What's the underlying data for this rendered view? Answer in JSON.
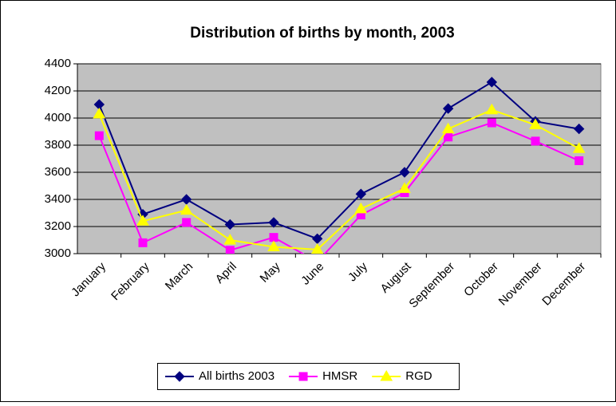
{
  "chart_data": {
    "type": "line",
    "title": "Distribution of births by month, 2003",
    "categories": [
      "January",
      "February",
      "March",
      "April",
      "May",
      "June",
      "July",
      "August",
      "September",
      "October",
      "November",
      "December"
    ],
    "series": [
      {
        "name": "All births 2003",
        "color": "#000080",
        "marker": "diamond",
        "values": [
          4100,
          3290,
          3400,
          3215,
          3230,
          3110,
          3440,
          3600,
          4070,
          4265,
          3975,
          3920
        ]
      },
      {
        "name": "HMSR",
        "color": "#ff00ff",
        "marker": "square",
        "values": [
          3870,
          3080,
          3230,
          3025,
          3120,
          2940,
          3285,
          3450,
          3860,
          3965,
          3830,
          3685
        ]
      },
      {
        "name": "RGD",
        "color": "#ffff00",
        "marker": "triangle",
        "values": [
          4030,
          3240,
          3320,
          3100,
          3050,
          3030,
          3330,
          3480,
          3920,
          4060,
          3950,
          3775
        ]
      }
    ],
    "ylim": [
      3000,
      4400
    ],
    "yticks": [
      3000,
      3200,
      3400,
      3600,
      3800,
      4000,
      4200,
      4400
    ],
    "grid": true,
    "legend": "bottom",
    "plot_background": "#c0c0c0"
  }
}
